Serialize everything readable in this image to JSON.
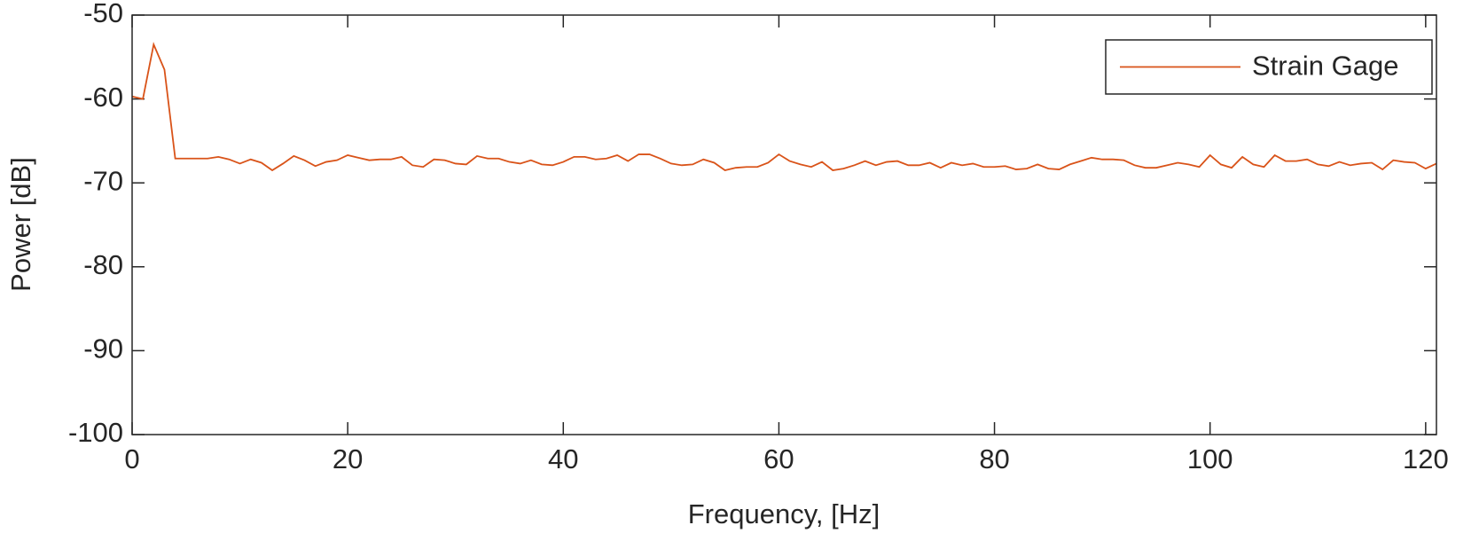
{
  "chart_data": {
    "type": "line",
    "xlabel": "Frequency, [Hz]",
    "ylabel": "Power [dB]",
    "xlim": [
      0,
      121
    ],
    "ylim": [
      -100,
      -50
    ],
    "xticks": [
      0,
      20,
      40,
      60,
      80,
      100,
      120
    ],
    "yticks": [
      -100,
      -90,
      -80,
      -70,
      -60,
      -50
    ],
    "legend": "upper right",
    "x": [
      0,
      1,
      2,
      3,
      4,
      5,
      6,
      7,
      8,
      9,
      10,
      11,
      12,
      13,
      14,
      15,
      16,
      17,
      18,
      19,
      20,
      21,
      22,
      23,
      24,
      25,
      26,
      27,
      28,
      29,
      30,
      31,
      32,
      33,
      34,
      35,
      36,
      37,
      38,
      39,
      40,
      41,
      42,
      43,
      44,
      45,
      46,
      47,
      48,
      49,
      50,
      51,
      52,
      53,
      54,
      55,
      56,
      57,
      58,
      59,
      60,
      61,
      62,
      63,
      64,
      65,
      66,
      67,
      68,
      69,
      70,
      71,
      72,
      73,
      74,
      75,
      76,
      77,
      78,
      79,
      80,
      81,
      82,
      83,
      84,
      85,
      86,
      87,
      88,
      89,
      90,
      91,
      92,
      93,
      94,
      95,
      96,
      97,
      98,
      99,
      100,
      101,
      102,
      103,
      104,
      105,
      106,
      107,
      108,
      109,
      110,
      111,
      112,
      113,
      114,
      115,
      116,
      117,
      118,
      119,
      120,
      121
    ],
    "series": [
      {
        "name": "Strain Gage",
        "color": "#d95319",
        "values": [
          -59.7,
          -60,
          -53.5,
          -56.5,
          -67.1,
          -67.1,
          -67.1,
          -67.1,
          -66.9,
          -67.2,
          -67.7,
          -67.2,
          -67.6,
          -68.5,
          -67.7,
          -66.8,
          -67.3,
          -68,
          -67.5,
          -67.3,
          -66.7,
          -67,
          -67.3,
          -67.2,
          -67.2,
          -66.9,
          -67.9,
          -68.1,
          -67.2,
          -67.3,
          -67.7,
          -67.8,
          -66.8,
          -67.1,
          -67.1,
          -67.5,
          -67.7,
          -67.3,
          -67.8,
          -67.9,
          -67.5,
          -66.9,
          -66.9,
          -67.2,
          -67.1,
          -66.7,
          -67.4,
          -66.6,
          -66.6,
          -67.1,
          -67.7,
          -67.9,
          -67.8,
          -67.2,
          -67.6,
          -68.5,
          -68.2,
          -68.1,
          -68.1,
          -67.6,
          -66.6,
          -67.4,
          -67.8,
          -68.1,
          -67.5,
          -68.5,
          -68.3,
          -67.9,
          -67.4,
          -67.9,
          -67.5,
          -67.4,
          -67.9,
          -67.9,
          -67.6,
          -68.2,
          -67.6,
          -67.9,
          -67.7,
          -68.1,
          -68.1,
          -68,
          -68.4,
          -68.3,
          -67.8,
          -68.3,
          -68.4,
          -67.8,
          -67.4,
          -67,
          -67.2,
          -67.2,
          -67.3,
          -67.9,
          -68.2,
          -68.2,
          -67.9,
          -67.6,
          -67.8,
          -68.1,
          -66.7,
          -67.8,
          -68.2,
          -66.9,
          -67.8,
          -68.1,
          -66.7,
          -67.4,
          -67.4,
          -67.2,
          -67.8,
          -68,
          -67.5,
          -67.9,
          -67.7,
          -67.6,
          -68.4,
          -67.3,
          -67.5,
          -67.6,
          -68.3,
          -67.7
        ]
      }
    ]
  }
}
